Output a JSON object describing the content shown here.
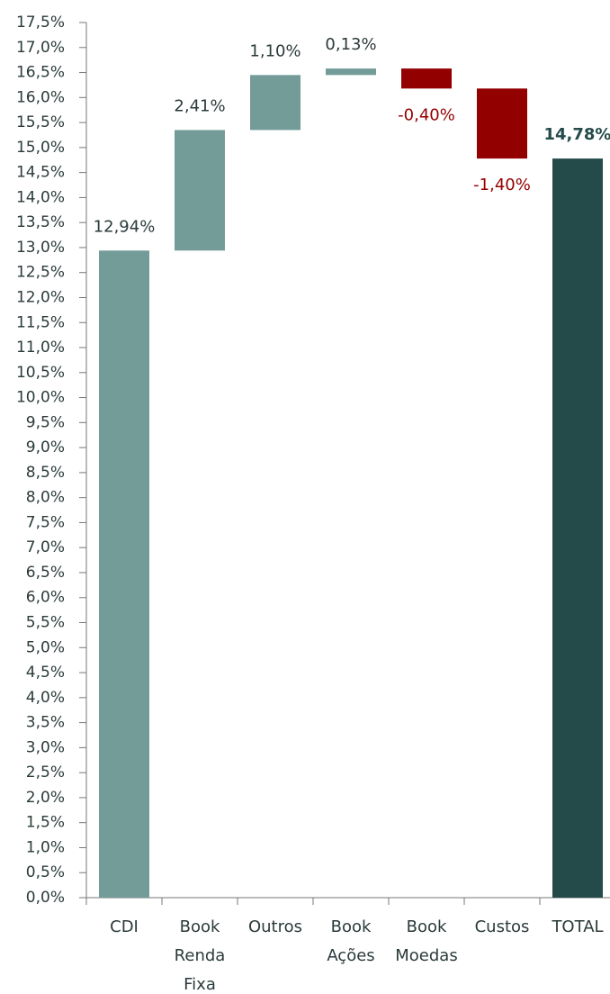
{
  "chart_data": {
    "type": "waterfall",
    "categories": [
      "CDI",
      "Book Renda Fixa",
      "Outros",
      "Book Ações",
      "Book Moedas",
      "Custos",
      "TOTAL"
    ],
    "values": [
      12.94,
      2.41,
      1.1,
      0.13,
      -0.4,
      -1.4,
      14.78
    ],
    "value_labels": [
      "12,94%",
      "2,41%",
      "1,10%",
      "0,13%",
      "-0,40%",
      "-1,40%",
      "14,78%"
    ],
    "colors": {
      "increase": "#739c99",
      "decrease": "#930000",
      "total": "#244b4a"
    },
    "ylim": [
      0,
      17.5
    ],
    "yticks": [
      {
        "value": 0,
        "label": "0,0%"
      },
      {
        "value": 0.5,
        "label": "0,5%"
      },
      {
        "value": 1,
        "label": "1,0%"
      },
      {
        "value": 1.5,
        "label": "1,5%"
      },
      {
        "value": 2,
        "label": "2,0%"
      },
      {
        "value": 2.5,
        "label": "2,5%"
      },
      {
        "value": 3,
        "label": "3,0%"
      },
      {
        "value": 3.5,
        "label": "3,5%"
      },
      {
        "value": 4,
        "label": "4,0%"
      },
      {
        "value": 4.5,
        "label": "4,5%"
      },
      {
        "value": 5,
        "label": "5,0%"
      },
      {
        "value": 5.5,
        "label": "5,5%"
      },
      {
        "value": 6,
        "label": "6,0%"
      },
      {
        "value": 6.5,
        "label": "6,5%"
      },
      {
        "value": 7,
        "label": "7,0%"
      },
      {
        "value": 7.5,
        "label": "7,5%"
      },
      {
        "value": 8,
        "label": "8,0%"
      },
      {
        "value": 8.5,
        "label": "8,5%"
      },
      {
        "value": 9,
        "label": "9,0%"
      },
      {
        "value": 9.5,
        "label": "9,5%"
      },
      {
        "value": 10,
        "label": "10,0%"
      },
      {
        "value": 10.5,
        "label": "10,5%"
      },
      {
        "value": 11,
        "label": "11,0%"
      },
      {
        "value": 11.5,
        "label": "11,5%"
      },
      {
        "value": 12,
        "label": "12,0%"
      },
      {
        "value": 12.5,
        "label": "12,5%"
      },
      {
        "value": 13,
        "label": "13,0%"
      },
      {
        "value": 13.5,
        "label": "13,5%"
      },
      {
        "value": 14,
        "label": "14,0%"
      },
      {
        "value": 14.5,
        "label": "14,5%"
      },
      {
        "value": 15,
        "label": "15,0%"
      },
      {
        "value": 15.5,
        "label": "15,5%"
      },
      {
        "value": 16,
        "label": "16,0%"
      },
      {
        "value": 16.5,
        "label": "16,5%"
      },
      {
        "value": 17,
        "label": "17,0%"
      },
      {
        "value": 17.5,
        "label": "17,5%"
      }
    ]
  }
}
